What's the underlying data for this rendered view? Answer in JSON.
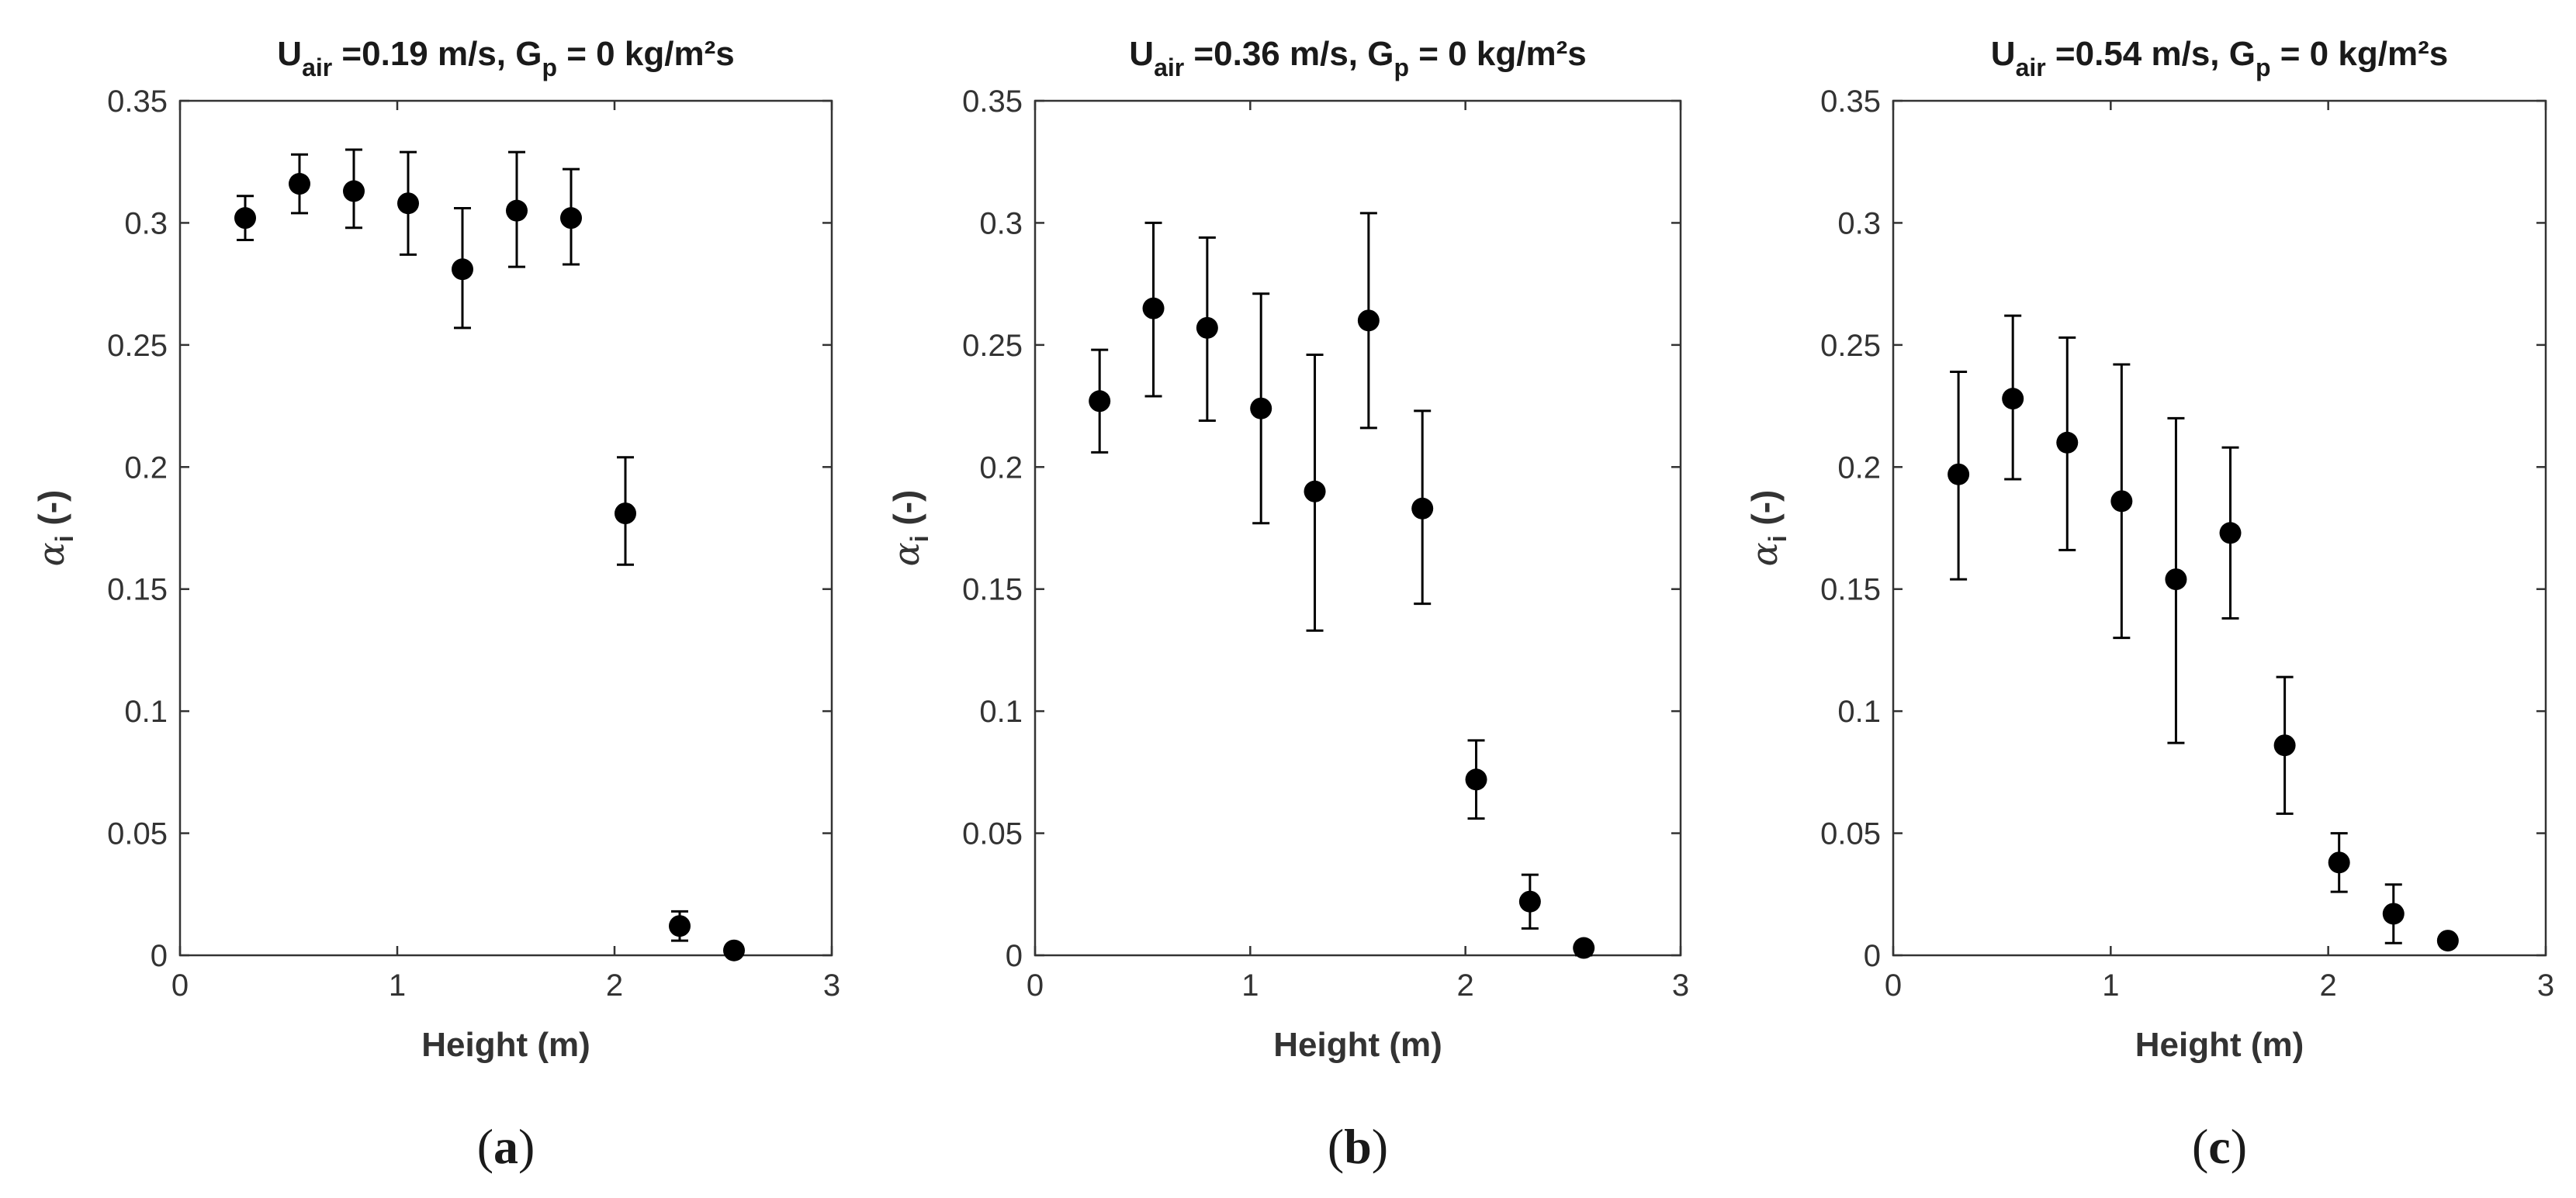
{
  "figure": {
    "background": "#ffffff",
    "marker_color": "#000000",
    "axis_color": "#333333"
  },
  "chart_data": [
    {
      "type": "scatter",
      "panel_label": "a",
      "title": {
        "main": "U",
        "subscript": "air",
        "rest": " =0.19 m/s, G",
        "subscript2": "p",
        "tail": " = 0 kg/m²s"
      },
      "xlabel": "Height (m)",
      "ylabel": {
        "symbol": "α",
        "subscript": "i",
        "rest": " (-)"
      },
      "xlim": [
        0,
        3
      ],
      "ylim": [
        0,
        0.35
      ],
      "xticks": [
        "0",
        "1",
        "2",
        "3"
      ],
      "yticks": [
        "0",
        "0.05",
        "0.1",
        "0.15",
        "0.2",
        "0.25",
        "0.3",
        "0.35"
      ],
      "x": [
        0.3,
        0.55,
        0.8,
        1.05,
        1.3,
        1.55,
        1.8,
        2.05,
        2.3,
        2.55
      ],
      "y": [
        0.302,
        0.316,
        0.313,
        0.308,
        0.281,
        0.305,
        0.302,
        0.181,
        0.012,
        0.002
      ],
      "err_low": [
        0.293,
        0.304,
        0.298,
        0.287,
        0.257,
        0.282,
        0.283,
        0.16,
        0.006,
        0.0
      ],
      "err_high": [
        0.311,
        0.328,
        0.33,
        0.329,
        0.306,
        0.329,
        0.322,
        0.204,
        0.018,
        0.003
      ]
    },
    {
      "type": "scatter",
      "panel_label": "b",
      "title": {
        "main": "U",
        "subscript": "air",
        "rest": " =0.36 m/s, G",
        "subscript2": "p",
        "tail": " = 0 kg/m²s"
      },
      "xlabel": "Height (m)",
      "ylabel": {
        "symbol": "α",
        "subscript": "i",
        "rest": " (-)"
      },
      "xlim": [
        0,
        3
      ],
      "ylim": [
        0,
        0.35
      ],
      "xticks": [
        "0",
        "1",
        "2",
        "3"
      ],
      "yticks": [
        "0",
        "0.05",
        "0.1",
        "0.15",
        "0.2",
        "0.25",
        "0.3",
        "0.35"
      ],
      "x": [
        0.3,
        0.55,
        0.8,
        1.05,
        1.3,
        1.55,
        1.8,
        2.05,
        2.3,
        2.55
      ],
      "y": [
        0.227,
        0.265,
        0.257,
        0.224,
        0.19,
        0.26,
        0.183,
        0.072,
        0.022,
        0.003
      ],
      "err_low": [
        0.206,
        0.229,
        0.219,
        0.177,
        0.133,
        0.216,
        0.144,
        0.056,
        0.011,
        0.0
      ],
      "err_high": [
        0.248,
        0.3,
        0.294,
        0.271,
        0.246,
        0.304,
        0.223,
        0.088,
        0.033,
        0.004
      ]
    },
    {
      "type": "scatter",
      "panel_label": "c",
      "title": {
        "main": "U",
        "subscript": "air",
        "rest": " =0.54 m/s, G",
        "subscript2": "p",
        "tail": " = 0 kg/m²s"
      },
      "xlabel": "Height (m)",
      "ylabel": {
        "symbol": "α",
        "subscript": "i",
        "rest": " (-)"
      },
      "xlim": [
        0,
        3
      ],
      "ylim": [
        0,
        0.35
      ],
      "xticks": [
        "0",
        "1",
        "2",
        "3"
      ],
      "yticks": [
        "0",
        "0.05",
        "0.1",
        "0.15",
        "0.2",
        "0.25",
        "0.3",
        "0.35"
      ],
      "x": [
        0.3,
        0.55,
        0.8,
        1.05,
        1.3,
        1.55,
        1.8,
        2.05,
        2.3,
        2.55
      ],
      "y": [
        0.197,
        0.228,
        0.21,
        0.186,
        0.154,
        0.173,
        0.086,
        0.038,
        0.017,
        0.006
      ],
      "err_low": [
        0.154,
        0.195,
        0.166,
        0.13,
        0.087,
        0.138,
        0.058,
        0.026,
        0.005,
        0.004
      ],
      "err_high": [
        0.239,
        0.262,
        0.253,
        0.242,
        0.22,
        0.208,
        0.114,
        0.05,
        0.029,
        0.008
      ]
    }
  ]
}
